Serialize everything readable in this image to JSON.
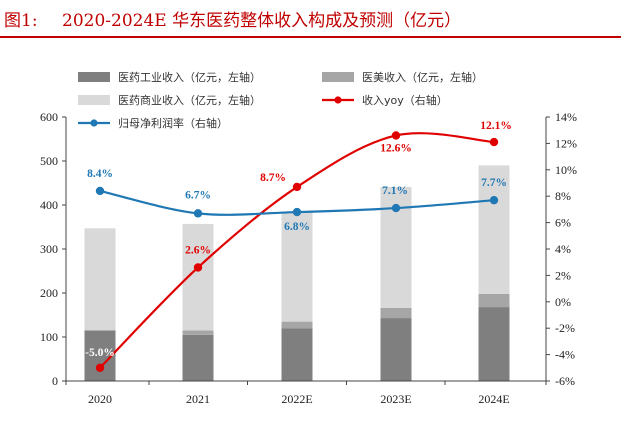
{
  "header": {
    "figure_number": "图1:",
    "title": "2020-2024E 华东医药整体收入构成及预测（亿元）"
  },
  "colors": {
    "accent": "#c00000",
    "industrial": "#7f7f7f",
    "aesthetic": "#a6a6a6",
    "commercial": "#d9d9d9",
    "revenue_yoy": "#e00000",
    "net_margin": "#1f78b4"
  },
  "chart_data": {
    "type": "bar",
    "stacked": true,
    "title": "2020-2024E 华东医药整体收入构成及预测（亿元）",
    "categories": [
      "2020",
      "2021",
      "2022E",
      "2023E",
      "2024E"
    ],
    "series": [
      {
        "name": "医药工业收入（亿元，左轴）",
        "kind": "bar",
        "axis": "left",
        "values": [
          115,
          105,
          120,
          143,
          168
        ]
      },
      {
        "name": "医美收入（亿元，左轴）",
        "kind": "bar",
        "axis": "left",
        "values": [
          0,
          10,
          15,
          23,
          30
        ]
      },
      {
        "name": "医药商业收入（亿元，左轴）",
        "kind": "bar",
        "axis": "left",
        "values": [
          232,
          242,
          248,
          275,
          292
        ]
      },
      {
        "name": "收入yoy（右轴）",
        "kind": "line",
        "axis": "right",
        "values": [
          -5.0,
          2.6,
          8.7,
          12.6,
          12.1
        ],
        "labels": [
          "-5.0%",
          "2.6%",
          "8.7%",
          "12.6%",
          "12.1%"
        ]
      },
      {
        "name": "归母净利润率（右轴）",
        "kind": "line",
        "axis": "right",
        "values": [
          8.4,
          6.7,
          6.8,
          7.1,
          7.7
        ],
        "labels": [
          "8.4%",
          "6.7%",
          "6.8%",
          "7.1%",
          "7.7%"
        ]
      }
    ],
    "left_axis": {
      "min": 0,
      "max": 600,
      "step": 100,
      "ticks": [
        "0",
        "100",
        "200",
        "300",
        "400",
        "500",
        "600"
      ]
    },
    "right_axis": {
      "min": -6,
      "max": 14,
      "step": 2,
      "ticks": [
        "-6%",
        "-4%",
        "-2%",
        "0%",
        "2%",
        "4%",
        "6%",
        "8%",
        "10%",
        "12%",
        "14%"
      ]
    },
    "grid": false,
    "legend_position": "top"
  }
}
